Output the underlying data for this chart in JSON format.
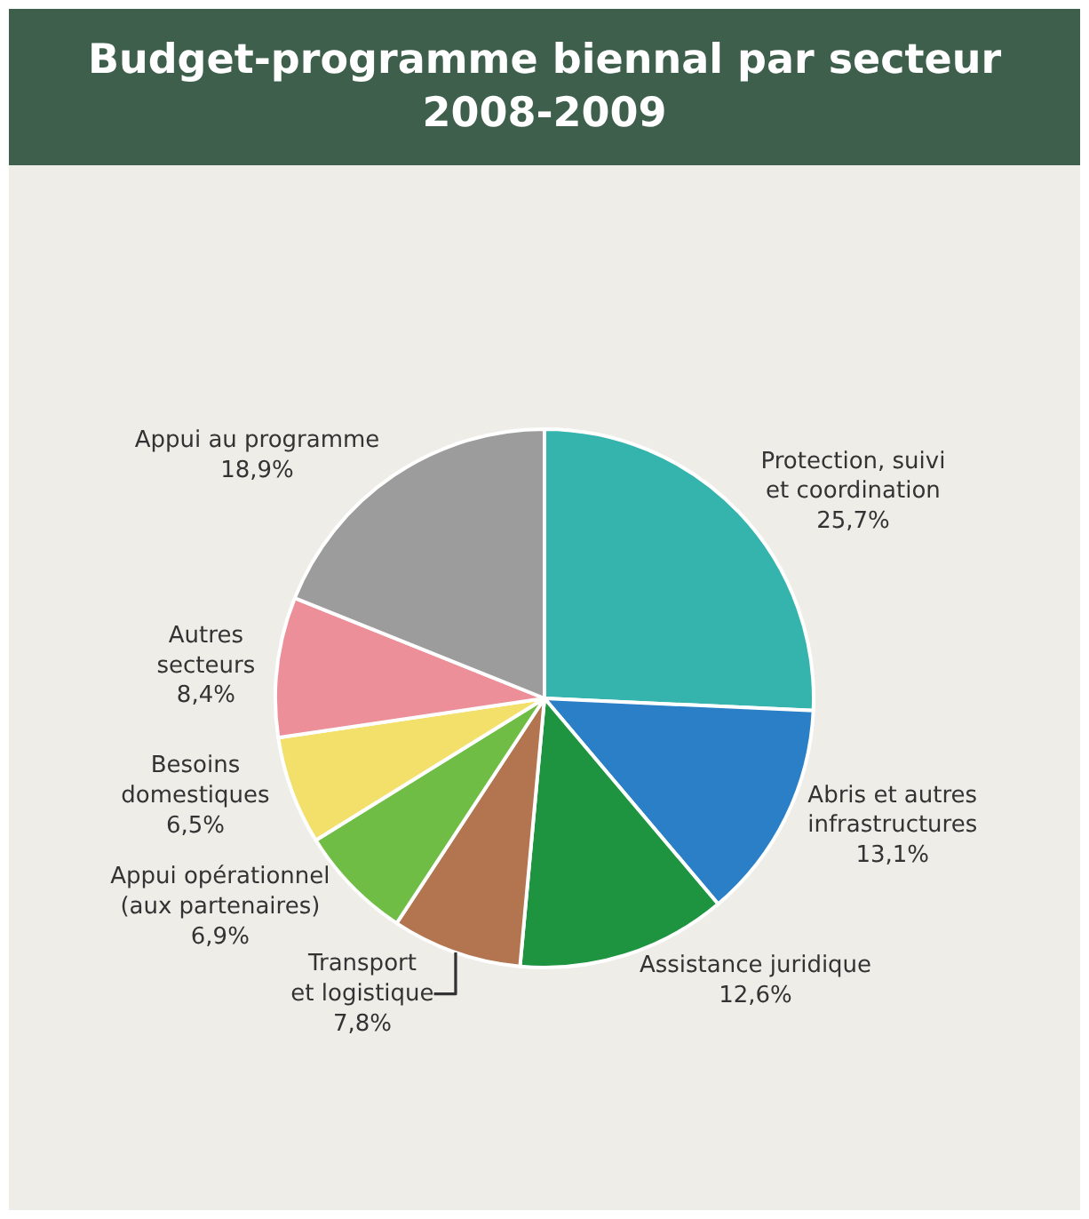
{
  "chart_data": {
    "type": "pie",
    "title": "Budget-programme biennal par secteur\n2008-2009",
    "categories": [
      "Protection, suivi\net coordination",
      "Abris et autres\ninfrastructures",
      "Assistance juridique",
      "Transport\net logistique",
      "Appui opérationnel\n(aux partenaires)",
      "Besoins\ndomestiques",
      "Autres\nsecteurs",
      "Appui au programme"
    ],
    "values": [
      25.7,
      13.1,
      12.6,
      7.8,
      6.9,
      6.5,
      8.4,
      18.9
    ],
    "value_labels": [
      "25,7%",
      "13,1%",
      "12,6%",
      "7,8%",
      "6,9%",
      "6,5%",
      "8,4%",
      "18,9%"
    ],
    "colors": [
      "#35b3ad",
      "#2a7fc6",
      "#1e9440",
      "#b27550",
      "#6fbd45",
      "#f3e06a",
      "#ec8f98",
      "#9c9c9c"
    ],
    "legend": false
  }
}
